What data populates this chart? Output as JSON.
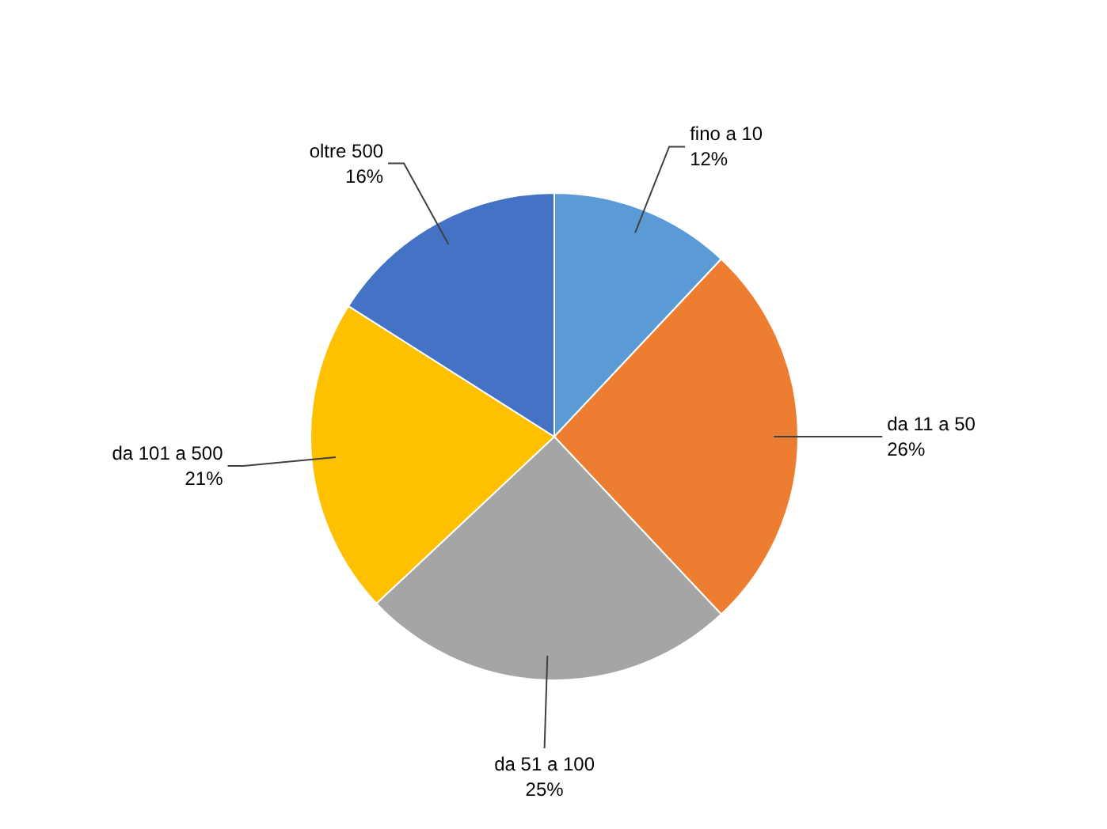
{
  "chart_data": {
    "type": "pie",
    "categories": [
      "fino a 10",
      "da 11 a 50",
      "da 51 a 100",
      "da 101 a 500",
      "oltre 500"
    ],
    "values": [
      12,
      26,
      25,
      21,
      16
    ],
    "value_labels": [
      "12%",
      "26%",
      "25%",
      "21%",
      "16%"
    ],
    "colors": [
      "#5b9bd5",
      "#ed7d31",
      "#a5a5a5",
      "#ffc000",
      "#4472c4"
    ]
  }
}
